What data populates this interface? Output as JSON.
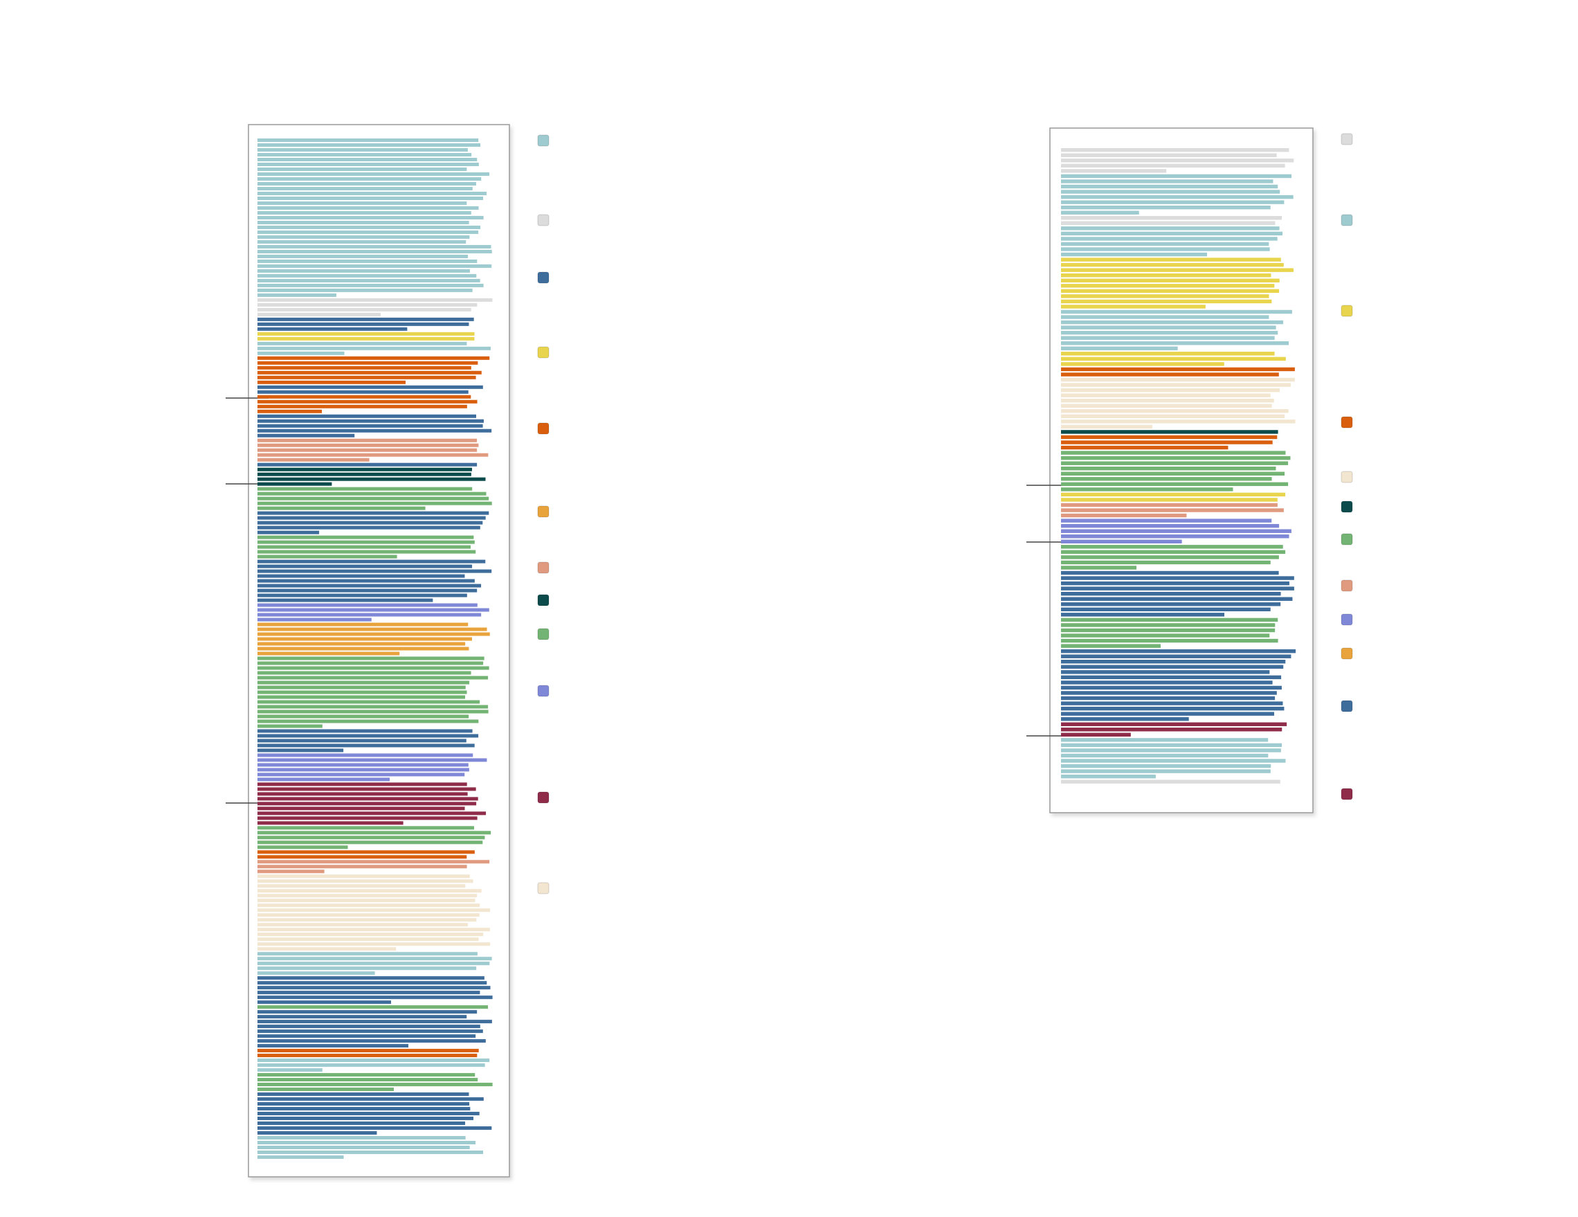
{
  "documents": [
    {
      "runs": [
        {
          "color": "#9ecbd0",
          "lines": 33
        },
        {
          "color": "#dcdcdc",
          "lines": 4
        },
        {
          "color": "#3e6d9c",
          "lines": 3
        },
        {
          "color": "#e8d44d",
          "lines": 2
        },
        {
          "color": "#9ecbd0",
          "lines": 3
        },
        {
          "color": "#d95f0e",
          "lines": 6
        },
        {
          "color": "#3e6d9c",
          "lines": 2
        },
        {
          "color": "#d95f0e",
          "lines": 4
        },
        {
          "color": "#3e6d9c",
          "lines": 5
        },
        {
          "color": "#e09a80",
          "lines": 5
        },
        {
          "color": "#3e6d9c",
          "lines": 1
        },
        {
          "color": "#0b4b4b",
          "lines": 4
        },
        {
          "color": "#73b373",
          "lines": 5
        },
        {
          "color": "#3e6d9c",
          "lines": 5
        },
        {
          "color": "#73b373",
          "lines": 5
        },
        {
          "color": "#3e6d9c",
          "lines": 9
        },
        {
          "color": "#7f88d6",
          "lines": 4
        },
        {
          "color": "#e8a33d",
          "lines": 7
        },
        {
          "color": "#73b373",
          "lines": 15
        },
        {
          "color": "#3e6d9c",
          "lines": 5
        },
        {
          "color": "#7f88d6",
          "lines": 6
        },
        {
          "color": "#8e2c4a",
          "lines": 9
        },
        {
          "color": "#73b373",
          "lines": 5
        },
        {
          "color": "#d95f0e",
          "lines": 2
        },
        {
          "color": "#e09a80",
          "lines": 3
        },
        {
          "color": "#f3e6d0",
          "lines": 16
        },
        {
          "color": "#9ecbd0",
          "lines": 5
        },
        {
          "color": "#3e6d9c",
          "lines": 6
        },
        {
          "color": "#73b373",
          "lines": 1
        },
        {
          "color": "#3e6d9c",
          "lines": 8
        },
        {
          "color": "#d95f0e",
          "lines": 2
        },
        {
          "color": "#9ecbd0",
          "lines": 3
        },
        {
          "color": "#73b373",
          "lines": 4
        },
        {
          "color": "#3e6d9c",
          "lines": 9
        },
        {
          "color": "#9ecbd0",
          "lines": 5
        }
      ],
      "legend": [
        "#9ecbd0",
        "#dcdcdc",
        "#3e6d9c",
        "#e8d44d",
        "#d95f0e",
        "#e8a33d",
        "#e09a80",
        "#0b4b4b",
        "#73b373",
        "#7f88d6",
        "#8e2c4a",
        "#f3e6d0"
      ]
    },
    {
      "runs": [
        {
          "color": "#dcdcdc",
          "lines": 5
        },
        {
          "color": "#9ecbd0",
          "lines": 8
        },
        {
          "color": "#dcdcdc",
          "lines": 2
        },
        {
          "color": "#9ecbd0",
          "lines": 6
        },
        {
          "color": "#e8d44d",
          "lines": 10
        },
        {
          "color": "#9ecbd0",
          "lines": 8
        },
        {
          "color": "#e8d44d",
          "lines": 3
        },
        {
          "color": "#d95f0e",
          "lines": 2
        },
        {
          "color": "#f3e6d0",
          "lines": 10
        },
        {
          "color": "#0b4b4b",
          "lines": 1
        },
        {
          "color": "#d95f0e",
          "lines": 3
        },
        {
          "color": "#73b373",
          "lines": 8
        },
        {
          "color": "#e8d44d",
          "lines": 2
        },
        {
          "color": "#e09a80",
          "lines": 3
        },
        {
          "color": "#7f88d6",
          "lines": 5
        },
        {
          "color": "#73b373",
          "lines": 5
        },
        {
          "color": "#3e6d9c",
          "lines": 9
        },
        {
          "color": "#73b373",
          "lines": 6
        },
        {
          "color": "#3e6d9c",
          "lines": 14
        },
        {
          "color": "#8e2c4a",
          "lines": 3
        },
        {
          "color": "#9ecbd0",
          "lines": 8
        },
        {
          "color": "#dcdcdc",
          "lines": 1
        }
      ],
      "legend": [
        "#dcdcdc",
        "#9ecbd0",
        "#e8d44d",
        "#d95f0e",
        "#f3e6d0",
        "#0b4b4b",
        "#73b373",
        "#e09a80",
        "#7f88d6",
        "#e8a33d",
        "#3e6d9c",
        "#8e2c4a"
      ]
    }
  ]
}
